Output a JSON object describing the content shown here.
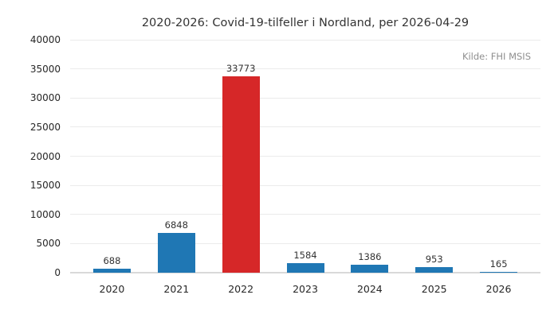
{
  "header": {
    "title": "2020-2026: Covid-19-tilfeller i Nordland, per 2026-04-29",
    "source": "Kilde: FHI MSIS"
  },
  "colors": {
    "bar_default": "#1f77b4",
    "bar_highlight": "#d62728",
    "grid": "#ebebeb",
    "axis_line": "#d9d9d9",
    "tick_text": "#262626",
    "label_text": "#333333",
    "muted_text": "#8f8f8f",
    "background": "#ffffff"
  },
  "chart_data": {
    "type": "bar",
    "title": "2020-2026: Covid-19-tilfeller i Nordland, per 2026-04-29",
    "source": "Kilde: FHI MSIS",
    "categories": [
      "2020",
      "2021",
      "2022",
      "2023",
      "2024",
      "2025",
      "2026"
    ],
    "values": [
      688,
      6848,
      33773,
      1584,
      1386,
      953,
      165
    ],
    "value_labels": [
      "688",
      "6848",
      "33773",
      "1584",
      "1386",
      "953",
      "165"
    ],
    "bar_colors": [
      "#1f77b4",
      "#1f77b4",
      "#d62728",
      "#1f77b4",
      "#1f77b4",
      "#1f77b4",
      "#1f77b4"
    ],
    "xlabel": "",
    "ylabel": "",
    "ylim": [
      0,
      40000
    ],
    "yticks": [
      0,
      5000,
      10000,
      15000,
      20000,
      25000,
      30000,
      35000,
      40000
    ],
    "ytick_labels": [
      "0",
      "5000",
      "10000",
      "15000",
      "20000",
      "25000",
      "30000",
      "35000",
      "40000"
    ],
    "grid": true,
    "legend": "none",
    "show_value_labels": true
  }
}
